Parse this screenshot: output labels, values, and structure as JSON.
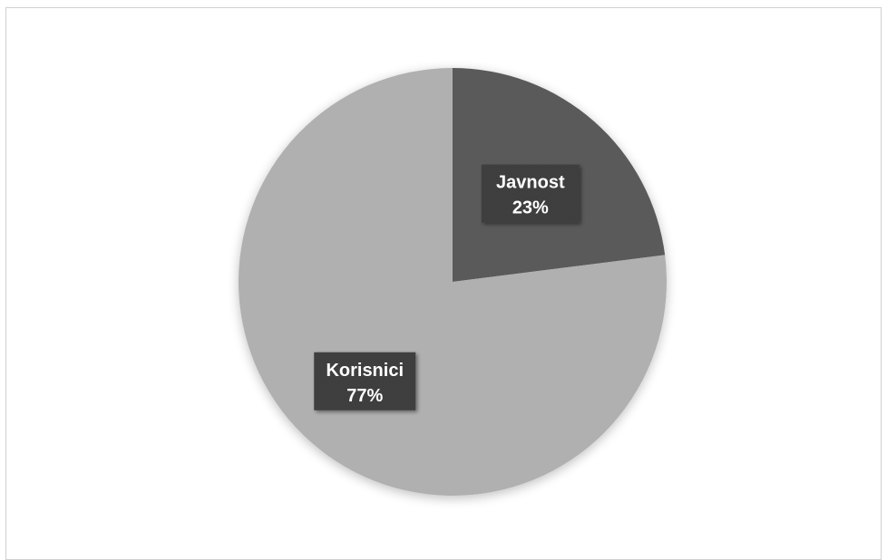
{
  "chart_data": {
    "type": "pie",
    "categories": [
      "Javnost",
      "Korisnici"
    ],
    "values": [
      23,
      77
    ],
    "labels": [
      "23%",
      "77%"
    ],
    "colors": [
      "#5a5a5a",
      "#b0b0b0"
    ],
    "label_box_color": "#3a3a3a",
    "label_text_color": "#ffffff",
    "border_color": "#d0d0d0"
  }
}
